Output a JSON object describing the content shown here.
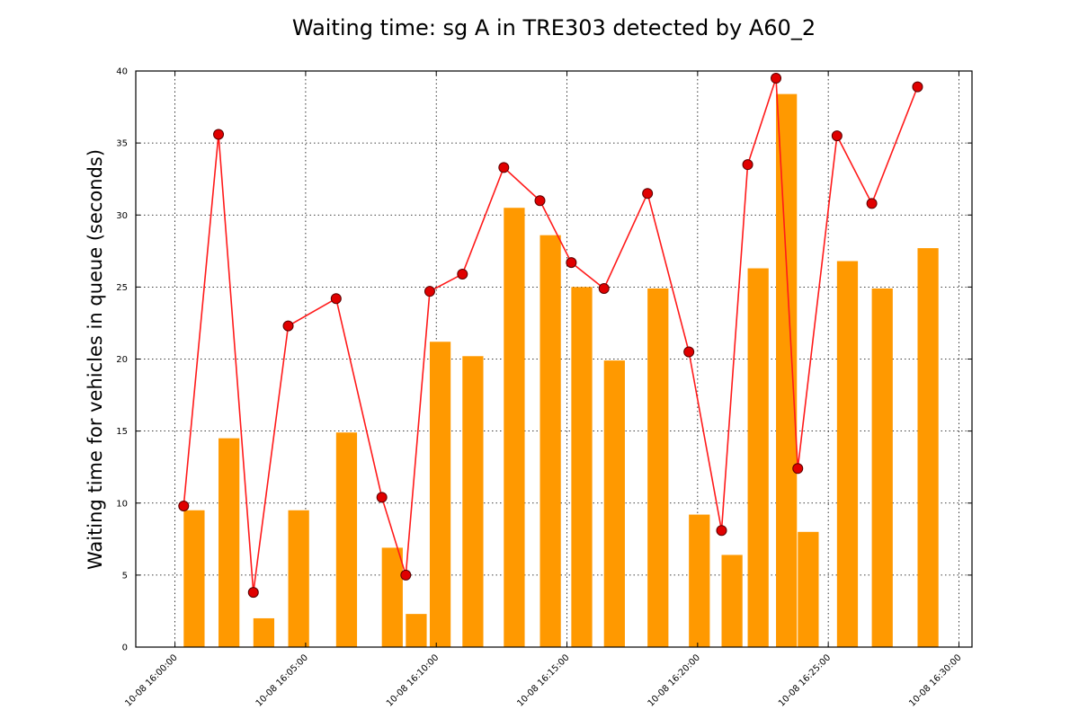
{
  "colors": {
    "bar": "#ff9900",
    "line": "#ff1a1a",
    "marker": "#e00000"
  },
  "chart_data": {
    "type": "bar",
    "title": "Waiting time: sg A in TRE303 detected by A60_2",
    "xlabel": "",
    "ylabel": "Waiting time for vehicles in queue (seconds)",
    "ylim": [
      0,
      40
    ],
    "xlim": [
      "10-08 16:00:00",
      "10-08 16:30:00"
    ],
    "yticks": [
      "0",
      "5",
      "10",
      "15",
      "20",
      "25",
      "30",
      "35",
      "40"
    ],
    "xticks": [
      "10-08 16:00:00",
      "10-08 16:05:00",
      "10-08 16:10:00",
      "10-08 16:15:00",
      "10-08 16:20:00",
      "10-08 16:25:00",
      "10-08 16:30:00"
    ],
    "grid": true,
    "series": [
      {
        "type": "bar",
        "bar_width_minutes": 0.8,
        "points": [
          {
            "t": "16:00:20",
            "v": 9.5
          },
          {
            "t": "16:01:40",
            "v": 14.5
          },
          {
            "t": "16:03:00",
            "v": 2.0
          },
          {
            "t": "16:04:20",
            "v": 9.5
          },
          {
            "t": "16:06:10",
            "v": 14.9
          },
          {
            "t": "16:07:55",
            "v": 6.9
          },
          {
            "t": "16:08:50",
            "v": 2.3
          },
          {
            "t": "16:09:45",
            "v": 21.2
          },
          {
            "t": "16:11:00",
            "v": 20.2
          },
          {
            "t": "16:12:35",
            "v": 30.5
          },
          {
            "t": "16:13:58",
            "v": 28.6
          },
          {
            "t": "16:15:10",
            "v": 25.0
          },
          {
            "t": "16:16:25",
            "v": 19.9
          },
          {
            "t": "16:18:05",
            "v": 24.9
          },
          {
            "t": "16:19:40",
            "v": 9.2
          },
          {
            "t": "16:20:55",
            "v": 6.4
          },
          {
            "t": "16:21:55",
            "v": 26.3
          },
          {
            "t": "16:23:00",
            "v": 38.4
          },
          {
            "t": "16:23:50",
            "v": 8.0
          },
          {
            "t": "16:25:20",
            "v": 26.8
          },
          {
            "t": "16:26:40",
            "v": 24.9
          },
          {
            "t": "16:28:25",
            "v": 27.7
          }
        ]
      },
      {
        "type": "line",
        "points": [
          {
            "t": "16:00:20",
            "v": 9.8
          },
          {
            "t": "16:01:40",
            "v": 35.6
          },
          {
            "t": "16:03:00",
            "v": 3.8
          },
          {
            "t": "16:04:20",
            "v": 22.3
          },
          {
            "t": "16:06:10",
            "v": 24.2
          },
          {
            "t": "16:07:55",
            "v": 10.4
          },
          {
            "t": "16:08:50",
            "v": 5.0
          },
          {
            "t": "16:09:45",
            "v": 24.7
          },
          {
            "t": "16:11:00",
            "v": 25.9
          },
          {
            "t": "16:12:35",
            "v": 33.3
          },
          {
            "t": "16:13:58",
            "v": 31.0
          },
          {
            "t": "16:15:10",
            "v": 26.7
          },
          {
            "t": "16:16:25",
            "v": 24.9
          },
          {
            "t": "16:18:05",
            "v": 31.5
          },
          {
            "t": "16:19:40",
            "v": 20.5
          },
          {
            "t": "16:20:55",
            "v": 8.1
          },
          {
            "t": "16:21:55",
            "v": 33.5
          },
          {
            "t": "16:23:00",
            "v": 39.5
          },
          {
            "t": "16:23:50",
            "v": 12.4
          },
          {
            "t": "16:25:20",
            "v": 35.5
          },
          {
            "t": "16:26:40",
            "v": 30.8
          },
          {
            "t": "16:28:25",
            "v": 38.9
          }
        ]
      }
    ]
  }
}
